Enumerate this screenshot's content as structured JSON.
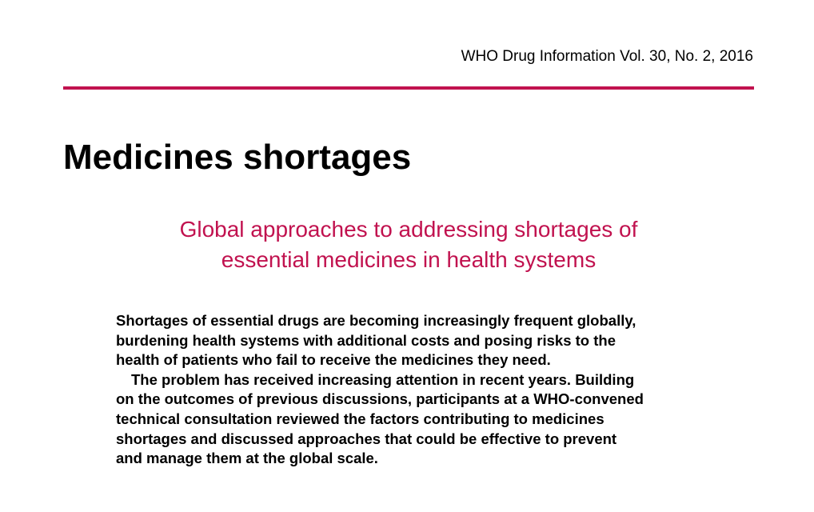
{
  "header": {
    "journal_citation": "WHO Drug Information Vol. 30, No. 2, 2016"
  },
  "colors": {
    "accent": "#c1124f",
    "text": "#000000"
  },
  "article": {
    "title": "Medicines shortages",
    "subtitle_lines": [
      "Global approaches to addressing shortages of",
      "essential medicines in health systems"
    ],
    "abstract_lines": [
      "Shortages of essential drugs are becoming increasingly frequent globally,",
      "burdening health systems with additional costs and posing risks to the",
      "health of patients who fail to receive the medicines they need.",
      "The problem has received increasing attention in recent years. Building",
      "on the outcomes of previous discussions, participants at a WHO-convened",
      "technical consultation reviewed the factors contributing to medicines",
      "shortages and discussed approaches that could be effective to prevent",
      "and manage them at the global scale."
    ]
  }
}
